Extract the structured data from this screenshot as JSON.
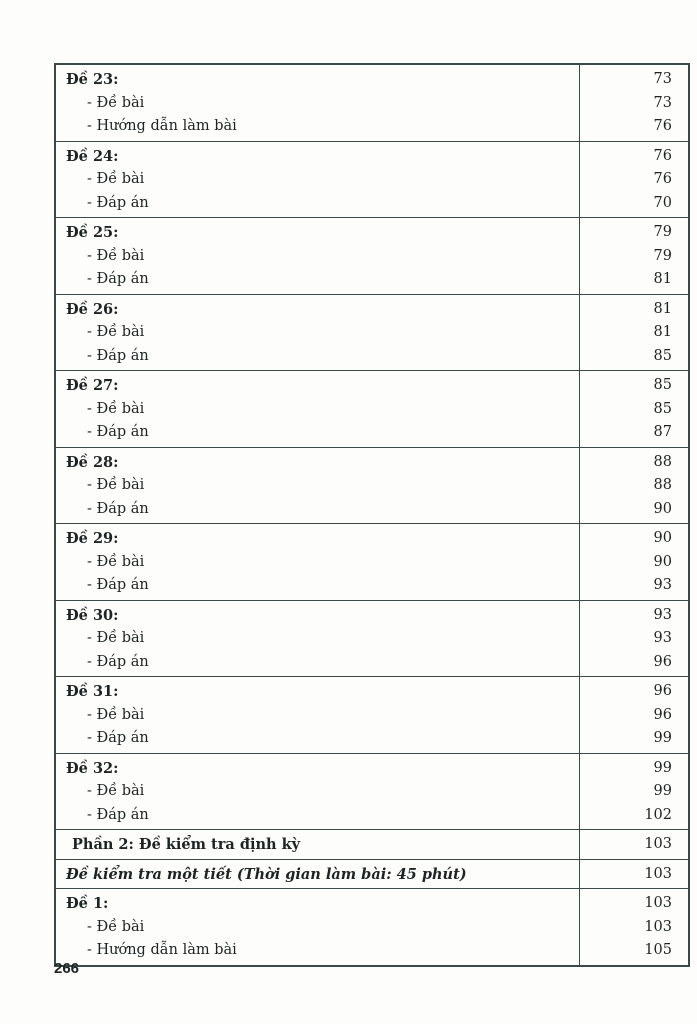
{
  "toc": {
    "groups": [
      {
        "title": "Đề 23:",
        "page": "73",
        "items": [
          {
            "label": "- Đề bài",
            "page": "73"
          },
          {
            "label": "- Hướng dẫn làm bài",
            "page": "76"
          }
        ]
      },
      {
        "title": "Đề 24:",
        "page": "76",
        "items": [
          {
            "label": "- Đề bài",
            "page": "76"
          },
          {
            "label": "- Đáp án",
            "page": "70"
          }
        ]
      },
      {
        "title": "Đề 25:",
        "page": "79",
        "items": [
          {
            "label": "- Đề bài",
            "page": "79"
          },
          {
            "label": "- Đáp án",
            "page": "81"
          }
        ]
      },
      {
        "title": "Đề 26:",
        "page": "81",
        "items": [
          {
            "label": "- Đề bài",
            "page": "81"
          },
          {
            "label": "- Đáp án",
            "page": "85"
          }
        ]
      },
      {
        "title": "Đề 27:",
        "page": "85",
        "items": [
          {
            "label": "- Đề bài",
            "page": "85"
          },
          {
            "label": "- Đáp án",
            "page": "87"
          }
        ]
      },
      {
        "title": "Đề 28:",
        "page": "88",
        "items": [
          {
            "label": "- Đề bài",
            "page": "88"
          },
          {
            "label": "- Đáp án",
            "page": "90"
          }
        ]
      },
      {
        "title": "Đề 29:",
        "page": "90",
        "items": [
          {
            "label": "- Đề bài",
            "page": "90"
          },
          {
            "label": "- Đáp án",
            "page": "93"
          }
        ]
      },
      {
        "title": "Đề 30:",
        "page": "93",
        "items": [
          {
            "label": "- Đề bài",
            "page": "93"
          },
          {
            "label": "- Đáp án",
            "page": "96"
          }
        ]
      },
      {
        "title": "Đề 31:",
        "page": "96",
        "items": [
          {
            "label": "- Đề bài",
            "page": "96"
          },
          {
            "label": "- Đáp án",
            "page": "99"
          }
        ]
      },
      {
        "title": "Đề 32:",
        "page": "99",
        "items": [
          {
            "label": "- Đề bài",
            "page": "99"
          },
          {
            "label": "- Đáp án",
            "page": "102"
          }
        ]
      }
    ],
    "section": {
      "title": "Phần 2: Đề kiểm tra định kỳ",
      "page": "103"
    },
    "subsection": {
      "title": "Đề kiểm tra một tiết (Thời gian làm bài: 45 phút)",
      "page": "103"
    },
    "last_group": {
      "title": "Đề 1:",
      "page": "103",
      "items": [
        {
          "label": "- Đề bài",
          "page": "103"
        },
        {
          "label": "- Hướng dẫn làm bài",
          "page": "105"
        }
      ]
    }
  },
  "page_number": "266"
}
